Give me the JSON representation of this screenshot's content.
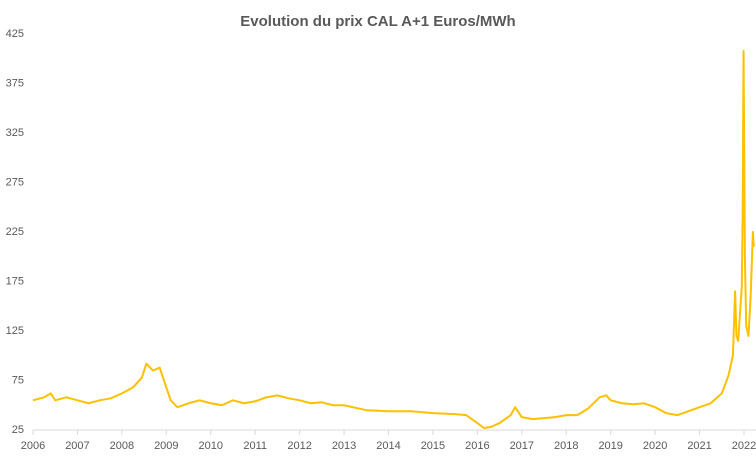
{
  "chart_data": {
    "type": "line",
    "title": "Evolution du prix CAL A+1 Euros/MWh",
    "x": [
      2006.0,
      2006.25,
      2006.4,
      2006.5,
      2006.75,
      2007.0,
      2007.25,
      2007.5,
      2007.75,
      2008.0,
      2008.25,
      2008.45,
      2008.55,
      2008.7,
      2008.85,
      2009.0,
      2009.1,
      2009.25,
      2009.5,
      2009.75,
      2010.0,
      2010.25,
      2010.5,
      2010.75,
      2011.0,
      2011.25,
      2011.5,
      2011.75,
      2012.0,
      2012.25,
      2012.5,
      2012.75,
      2013.0,
      2013.5,
      2014.0,
      2014.5,
      2015.0,
      2015.5,
      2015.75,
      2016.0,
      2016.15,
      2016.3,
      2016.5,
      2016.75,
      2016.85,
      2017.0,
      2017.25,
      2017.5,
      2017.75,
      2018.0,
      2018.25,
      2018.5,
      2018.75,
      2018.9,
      2019.0,
      2019.25,
      2019.5,
      2019.75,
      2020.0,
      2020.25,
      2020.5,
      2020.75,
      2021.0,
      2021.25,
      2021.5,
      2021.65,
      2021.75,
      2021.8,
      2021.83,
      2021.87,
      2021.92,
      2021.95,
      2021.97,
      2021.99,
      2022.02,
      2022.05,
      2022.1,
      2022.15,
      2022.2,
      2022.22
    ],
    "series": [
      {
        "color": "#ffc000",
        "values": [
          55,
          58,
          62,
          55,
          58,
          55,
          52,
          55,
          57,
          62,
          68,
          78,
          92,
          85,
          88,
          68,
          55,
          48,
          52,
          55,
          52,
          50,
          55,
          52,
          54,
          58,
          60,
          57,
          55,
          52,
          53,
          50,
          50,
          45,
          44,
          44,
          42,
          41,
          40,
          32,
          27,
          28,
          32,
          40,
          48,
          38,
          36,
          37,
          38,
          40,
          40,
          47,
          58,
          60,
          55,
          52,
          51,
          52,
          48,
          42,
          40,
          44,
          48,
          52,
          62,
          80,
          100,
          165,
          120,
          115,
          150,
          170,
          240,
          408,
          200,
          130,
          120,
          160,
          225,
          210
        ]
      }
    ],
    "xlim": [
      2006,
      2022.27
    ],
    "xticks": [
      2006,
      2007,
      2008,
      2009,
      2010,
      2011,
      2012,
      2013,
      2014,
      2015,
      2016,
      2017,
      2018,
      2019,
      2020,
      2021,
      2022
    ],
    "ylim": [
      25,
      425
    ],
    "yticks": [
      25,
      75,
      125,
      175,
      225,
      275,
      325,
      375,
      425
    ],
    "grid": false
  }
}
